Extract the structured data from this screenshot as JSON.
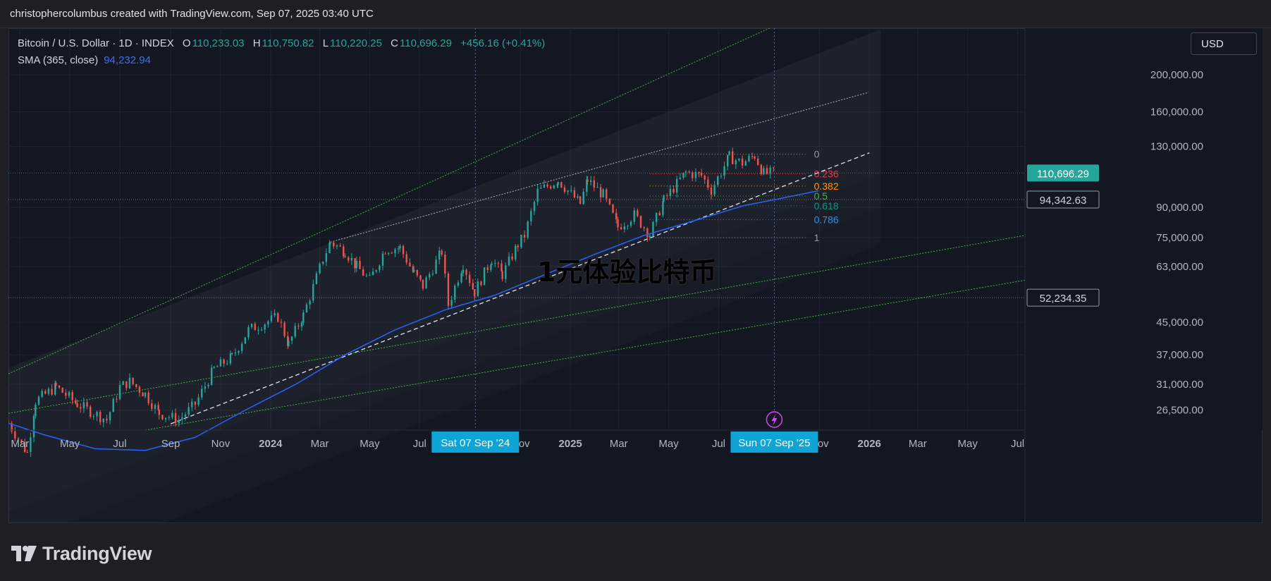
{
  "header": {
    "attribution": "christophercolumbus created with TradingView.com, Sep 07, 2025 03:40 UTC"
  },
  "legend": {
    "symbol": "Bitcoin / U.S. Dollar · 1D · INDEX",
    "open_label": "O",
    "open": "110,233.03",
    "high_label": "H",
    "high": "110,750.82",
    "low_label": "L",
    "low": "110,220.25",
    "close_label": "C",
    "close": "110,696.29",
    "change": "+456.16 (+0.41%)",
    "sma_label": "SMA (365, close)",
    "sma_value": "94,232.94"
  },
  "currency_button": {
    "label": "USD"
  },
  "watermark": {
    "text": "1元体验比特币"
  },
  "branding": {
    "name": "TradingView"
  },
  "chart_data": {
    "type": "candlestick",
    "title": "Bitcoin / U.S. Dollar · 1D · INDEX",
    "y_scale": "log",
    "ylim": [
      23500,
      265000
    ],
    "xlim": [
      "2023-02-15",
      "2026-07-10"
    ],
    "y_ticks": [
      {
        "value": 200000,
        "label": "200,000.00"
      },
      {
        "value": 160000,
        "label": "160,000.00"
      },
      {
        "value": 130000,
        "label": "130,000.00"
      },
      {
        "value": 90000,
        "label": "90,000.00"
      },
      {
        "value": 75000,
        "label": "75,000.00"
      },
      {
        "value": 63000,
        "label": "63,000.00"
      },
      {
        "value": 45000,
        "label": "45,000.00"
      },
      {
        "value": 37000,
        "label": "37,000.00"
      },
      {
        "value": 31000,
        "label": "31,000.00"
      },
      {
        "value": 26500,
        "label": "26,500.00"
      }
    ],
    "x_ticks": [
      {
        "date": "2023-03-01",
        "label": "Mar"
      },
      {
        "date": "2023-05-01",
        "label": "May"
      },
      {
        "date": "2023-07-01",
        "label": "Jul"
      },
      {
        "date": "2023-09-01",
        "label": "Sep"
      },
      {
        "date": "2023-11-01",
        "label": "Nov"
      },
      {
        "date": "2024-01-01",
        "label": "2024"
      },
      {
        "date": "2024-03-01",
        "label": "Mar"
      },
      {
        "date": "2024-05-01",
        "label": "May"
      },
      {
        "date": "2024-07-01",
        "label": "Jul"
      },
      {
        "date": "2024-11-01",
        "label": "Nov"
      },
      {
        "date": "2025-01-01",
        "label": "2025"
      },
      {
        "date": "2025-03-01",
        "label": "Mar"
      },
      {
        "date": "2025-05-01",
        "label": "May"
      },
      {
        "date": "2025-07-01",
        "label": "Jul"
      },
      {
        "date": "2025-11-01",
        "label": "Nov"
      },
      {
        "date": "2026-01-01",
        "label": "2026"
      },
      {
        "date": "2026-03-01",
        "label": "Mar"
      },
      {
        "date": "2026-05-01",
        "label": "May"
      },
      {
        "date": "2026-07-01",
        "label": "Jul"
      }
    ],
    "x_markers": [
      {
        "date": "2024-09-07",
        "label": "Sat 07 Sep '24"
      },
      {
        "date": "2025-09-07",
        "label": "Sun 07 Sep '25"
      }
    ],
    "price_labels": [
      {
        "value": 110696.29,
        "label": "110,696.29",
        "color": "#26a69a",
        "style": "filled"
      },
      {
        "value": 94342.63,
        "label": "94,342.63",
        "color": "#d1d4dc",
        "style": "outlined"
      },
      {
        "value": 52234.35,
        "label": "52,234.35",
        "color": "#d1d4dc",
        "style": "outlined"
      }
    ],
    "price_path": [
      [
        "2023-02-15",
        24500
      ],
      [
        "2023-03-10",
        20500
      ],
      [
        "2023-03-20",
        28000
      ],
      [
        "2023-04-14",
        30500
      ],
      [
        "2023-05-10",
        27500
      ],
      [
        "2023-06-15",
        25000
      ],
      [
        "2023-07-01",
        30500
      ],
      [
        "2023-07-13",
        31500
      ],
      [
        "2023-08-01",
        29200
      ],
      [
        "2023-08-18",
        26000
      ],
      [
        "2023-09-11",
        25000
      ],
      [
        "2023-10-01",
        27500
      ],
      [
        "2023-10-24",
        34000
      ],
      [
        "2023-11-15",
        36500
      ],
      [
        "2023-12-05",
        43000
      ],
      [
        "2024-01-10",
        46500
      ],
      [
        "2024-01-23",
        39500
      ],
      [
        "2024-02-10",
        47000
      ],
      [
        "2024-03-05",
        66000
      ],
      [
        "2024-03-14",
        73000
      ],
      [
        "2024-04-01",
        69000
      ],
      [
        "2024-04-15",
        63000
      ],
      [
        "2024-05-01",
        58000
      ],
      [
        "2024-05-20",
        70000
      ],
      [
        "2024-06-07",
        70500
      ],
      [
        "2024-06-24",
        60500
      ],
      [
        "2024-07-05",
        56000
      ],
      [
        "2024-07-28",
        69000
      ],
      [
        "2024-08-05",
        50000
      ],
      [
        "2024-08-23",
        64000
      ],
      [
        "2024-09-06",
        54000
      ],
      [
        "2024-09-27",
        66000
      ],
      [
        "2024-10-10",
        60000
      ],
      [
        "2024-10-29",
        72000
      ],
      [
        "2024-11-06",
        76000
      ],
      [
        "2024-11-22",
        99000
      ],
      [
        "2024-12-17",
        106000
      ],
      [
        "2025-01-13",
        92000
      ],
      [
        "2025-01-22",
        106000
      ],
      [
        "2025-02-10",
        97000
      ],
      [
        "2025-02-28",
        80000
      ],
      [
        "2025-03-20",
        86000
      ],
      [
        "2025-04-08",
        76500
      ],
      [
        "2025-04-25",
        94000
      ],
      [
        "2025-05-22",
        111000
      ],
      [
        "2025-06-10",
        109000
      ],
      [
        "2025-06-22",
        100000
      ],
      [
        "2025-07-14",
        122000
      ],
      [
        "2025-07-30",
        117500
      ],
      [
        "2025-08-14",
        123000
      ],
      [
        "2025-08-25",
        110500
      ],
      [
        "2025-09-07",
        110696
      ]
    ],
    "sma_365": [
      [
        "2023-02-15",
        24500
      ],
      [
        "2023-04-01",
        22800
      ],
      [
        "2023-06-01",
        21000
      ],
      [
        "2023-08-01",
        20800
      ],
      [
        "2023-10-01",
        22500
      ],
      [
        "2023-12-01",
        26500
      ],
      [
        "2024-02-01",
        31000
      ],
      [
        "2024-04-01",
        37000
      ],
      [
        "2024-06-01",
        43000
      ],
      [
        "2024-08-01",
        48500
      ],
      [
        "2024-10-01",
        53000
      ],
      [
        "2024-12-01",
        60000
      ],
      [
        "2025-02-01",
        68000
      ],
      [
        "2025-04-01",
        76000
      ],
      [
        "2025-06-01",
        83000
      ],
      [
        "2025-08-01",
        91000
      ],
      [
        "2025-09-07",
        94232.94
      ],
      [
        "2025-10-31",
        99500
      ]
    ],
    "trendline_dashed": [
      [
        "2023-09-01",
        24400
      ],
      [
        "2026-01-01",
        125000
      ]
    ],
    "channel_upper_dotted": [
      [
        "2024-03-14",
        73000
      ],
      [
        "2025-12-31",
        180000
      ]
    ],
    "outer_green_lines": [
      [
        [
          "2023-02-15",
          33000
        ],
        [
          "2025-09-01",
          265000
        ]
      ],
      [
        [
          "2023-02-15",
          26000
        ],
        [
          "2026-07-10",
          76000
        ]
      ],
      [
        [
          "2023-08-01",
          23500
        ],
        [
          "2026-07-10",
          58000
        ]
      ]
    ],
    "fibonacci": {
      "low": 75000,
      "high": 124000,
      "start": "2025-04-08",
      "end": "2025-10-15",
      "levels": [
        {
          "ratio": 0,
          "label": "0",
          "color": "#9598a1"
        },
        {
          "ratio": 0.236,
          "label": "0.236",
          "color": "#f23645"
        },
        {
          "ratio": 0.382,
          "label": "0.382",
          "color": "#ff9800"
        },
        {
          "ratio": 0.5,
          "label": "0.5",
          "color": "#4caf50"
        },
        {
          "ratio": 0.618,
          "label": "0.618",
          "color": "#089981"
        },
        {
          "ratio": 0.786,
          "label": "0.786",
          "color": "#2196f3"
        },
        {
          "ratio": 1,
          "label": "1",
          "color": "#9598a1"
        }
      ]
    }
  }
}
